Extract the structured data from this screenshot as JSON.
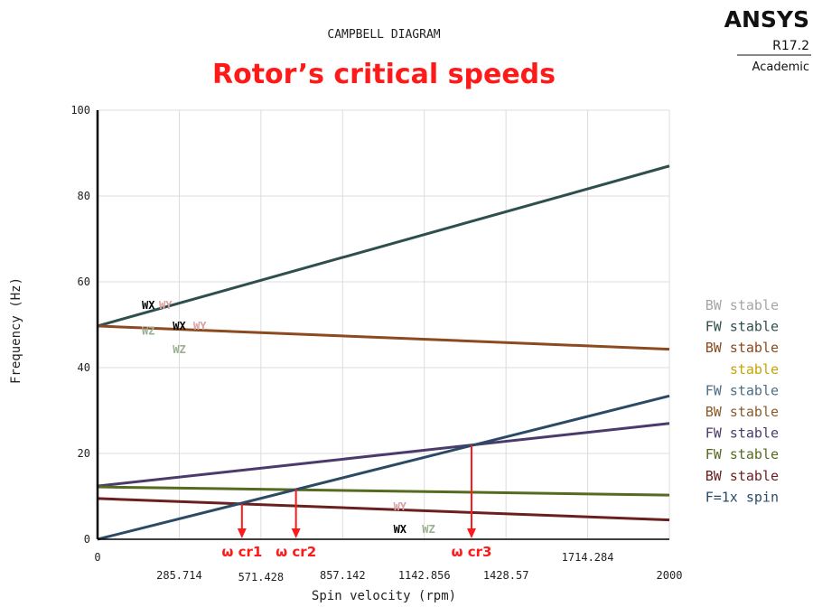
{
  "header": {
    "diagram_title": "CAMPBELL DIAGRAM",
    "subtitle": "Rotor’s critical speeds",
    "subtitle_color": "#ff1a1a"
  },
  "logo": {
    "brand": "ANSYS",
    "version": "R17.2",
    "edition": "Academic"
  },
  "chart_data": {
    "type": "line",
    "title": "CAMPBELL DIAGRAM",
    "xlabel": "Spin velocity (rpm)",
    "ylabel": "Frequency (Hz)",
    "xlim": [
      0,
      2000
    ],
    "ylim": [
      0,
      100
    ],
    "grid": true,
    "legend_position": "right",
    "x_ticks": [
      {
        "value": 0,
        "label": "0",
        "row": "upper"
      },
      {
        "value": 285.714,
        "label": "285.714",
        "row": "lower"
      },
      {
        "value": 571.428,
        "label": "571.428",
        "row": "lowest"
      },
      {
        "value": 857.142,
        "label": "857.142",
        "row": "lower"
      },
      {
        "value": 1142.856,
        "label": "1142.856",
        "row": "lower"
      },
      {
        "value": 1428.57,
        "label": "1428.57",
        "row": "lower"
      },
      {
        "value": 1714.284,
        "label": "1714.284",
        "row": "upper"
      },
      {
        "value": 2000,
        "label": "2000",
        "row": "lower"
      }
    ],
    "y_ticks": [
      {
        "value": 0,
        "label": "0"
      },
      {
        "value": 20,
        "label": "20"
      },
      {
        "value": 40,
        "label": "40"
      },
      {
        "value": 60,
        "label": "60"
      },
      {
        "value": 80,
        "label": "80"
      },
      {
        "value": 100,
        "label": "100"
      }
    ],
    "series": [
      {
        "legend": "BW stable",
        "color": "#a6a6a6",
        "x": [],
        "y": []
      },
      {
        "legend": "FW stable",
        "color": "#2f4f4f",
        "x": [
          0,
          2000
        ],
        "y": [
          49.7,
          87.0
        ]
      },
      {
        "legend": "BW stable",
        "color": "#8b4a1f",
        "x": [
          0,
          2000
        ],
        "y": [
          49.7,
          44.3
        ]
      },
      {
        "legend": "stable",
        "color": "#c8a400",
        "x": [],
        "y": []
      },
      {
        "legend": "FW stable",
        "color": "#4d6e83",
        "x": [],
        "y": []
      },
      {
        "legend": "BW stable",
        "color": "#8b5a2b",
        "x": [],
        "y": []
      },
      {
        "legend": "FW stable",
        "color": "#4b3b6b",
        "x": [
          0,
          2000
        ],
        "y": [
          12.4,
          27.0
        ]
      },
      {
        "legend": "FW stable",
        "color": "#556b1f",
        "x": [
          0,
          2000
        ],
        "y": [
          12.2,
          10.3
        ]
      },
      {
        "legend": "BW stable",
        "color": "#6b2020",
        "x": [
          0,
          2000
        ],
        "y": [
          9.5,
          4.5
        ]
      },
      {
        "legend": "F=1x spin",
        "color": "#2b4a66",
        "x": [
          0,
          2000
        ],
        "y": [
          0,
          33.4
        ]
      }
    ],
    "mode_labels": [
      {
        "text": "WX",
        "color": "#000000",
        "x": 155,
        "y": 54.5
      },
      {
        "text": "WY",
        "color": "#d9a0a0",
        "x": 215,
        "y": 54.5
      },
      {
        "text": "WZ",
        "color": "#9caf8f",
        "x": 155,
        "y": 48.5
      },
      {
        "text": "WX",
        "color": "#000000",
        "x": 263,
        "y": 49.7
      },
      {
        "text": "WY",
        "color": "#d9a0a0",
        "x": 335,
        "y": 49.7
      },
      {
        "text": "WZ",
        "color": "#9caf8f",
        "x": 263,
        "y": 44.2
      },
      {
        "text": "WY",
        "color": "#d9a0a0",
        "x": 1035,
        "y": 7.6
      },
      {
        "text": "WX",
        "color": "#000000",
        "x": 1035,
        "y": 2.3
      },
      {
        "text": "WZ",
        "color": "#9caf8f",
        "x": 1135,
        "y": 2.3
      }
    ],
    "critical_speeds": [
      {
        "label": "ω cr1",
        "rpm": 505,
        "frequency": 8.2
      },
      {
        "label": "ω cr2",
        "rpm": 694,
        "frequency": 11.7
      },
      {
        "label": "ω cr3",
        "rpm": 1308,
        "frequency": 21.9
      }
    ],
    "critical_color": "#ff1a1a"
  }
}
